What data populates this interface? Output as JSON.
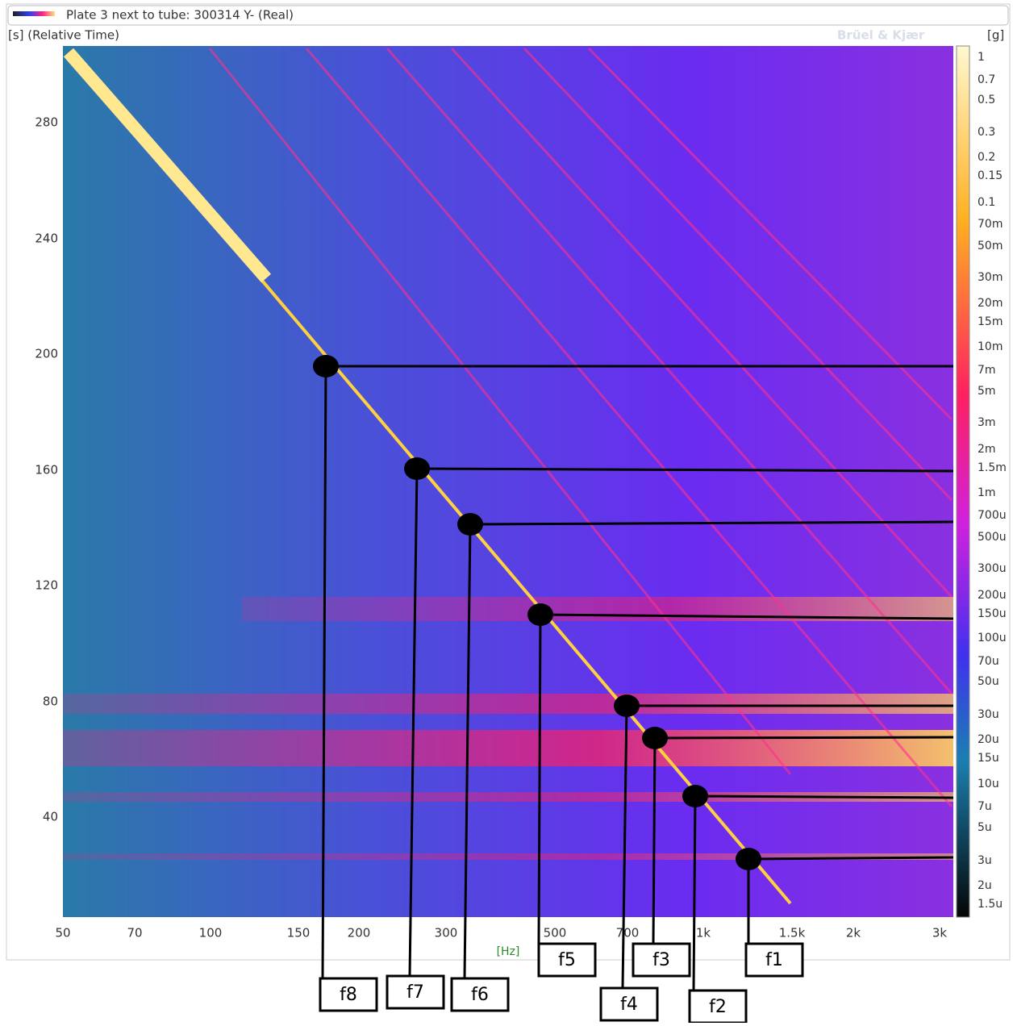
{
  "header": {
    "title": "Plate 3 next to tube: 300314 Y- (Real)",
    "y_unit": "[s] (Relative Time)",
    "brand": "Brüel & Kjær",
    "z_unit": "[g]",
    "x_unit": "[Hz]"
  },
  "y_ticks": [
    "280",
    "240",
    "200",
    "160",
    "120",
    "80",
    "40"
  ],
  "x_ticks": [
    "50",
    "70",
    "100",
    "150",
    "200",
    "300",
    "500",
    "700",
    "1k",
    "1.5k",
    "2k",
    "3k"
  ],
  "colorbar_ticks": [
    "1",
    "0.7",
    "0.5",
    "0.3",
    "0.2",
    "0.15",
    "0.1",
    "70m",
    "50m",
    "30m",
    "20m",
    "15m",
    "10m",
    "7m",
    "5m",
    "3m",
    "2m",
    "1.5m",
    "1m",
    "700u",
    "500u",
    "300u",
    "200u",
    "150u",
    "100u",
    "70u",
    "50u",
    "30u",
    "20u",
    "15u",
    "10u",
    "7u",
    "5u",
    "3u",
    "2u",
    "1.5u"
  ],
  "annotations": [
    "f1",
    "f2",
    "f3",
    "f4",
    "f5",
    "f6",
    "f7",
    "f8"
  ]
}
